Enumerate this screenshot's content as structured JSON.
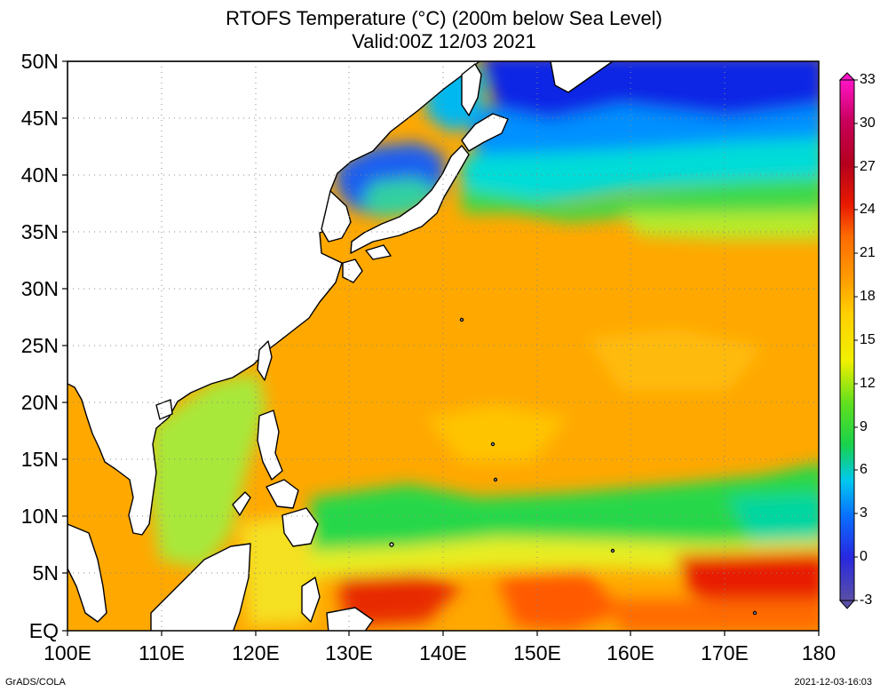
{
  "title": {
    "line1": "RTOFS Temperature (°C) (200m below Sea Level)",
    "line2": "Valid:00Z 12/03 2021"
  },
  "axes": {
    "x_ticks": [
      "100E",
      "110E",
      "120E",
      "130E",
      "140E",
      "150E",
      "160E",
      "170E",
      "180"
    ],
    "y_ticks": [
      "50N",
      "45N",
      "40N",
      "35N",
      "30N",
      "25N",
      "20N",
      "15N",
      "10N",
      "5N",
      "EQ"
    ],
    "lon_range": [
      100,
      180
    ],
    "lat_range": [
      0,
      50
    ],
    "grid": true
  },
  "colorbar": {
    "labels": [
      "33",
      "30",
      "27",
      "24",
      "21",
      "18",
      "15",
      "12",
      "9",
      "6",
      "3",
      "0",
      "-3"
    ],
    "range": [
      -3,
      33
    ],
    "units": "°C",
    "colors": [
      "#5a4fa6",
      "#2828e0",
      "#0a6cff",
      "#00b4ff",
      "#00e0c8",
      "#19d24a",
      "#62e01e",
      "#b4f01e",
      "#f0f000",
      "#ffd000",
      "#ff9a00",
      "#ff6a00",
      "#e81a00",
      "#b4001e",
      "#c8005a",
      "#ff14c8"
    ]
  },
  "map": {
    "projection": "lat-lon",
    "palette": {
      "land": "#ffffff",
      "coast": "#000000",
      "very_cold": "#0a28e6",
      "cold": "#0078ff",
      "cool": "#00c8f0",
      "mild": "#14d250",
      "warm_mild": "#a0ec28",
      "warm": "#ffc000",
      "hot": "#ff9600",
      "very_hot": "#e61a00"
    }
  },
  "footer": {
    "left": "GrADS/COLA",
    "right": "2021-12-03-16:03"
  }
}
